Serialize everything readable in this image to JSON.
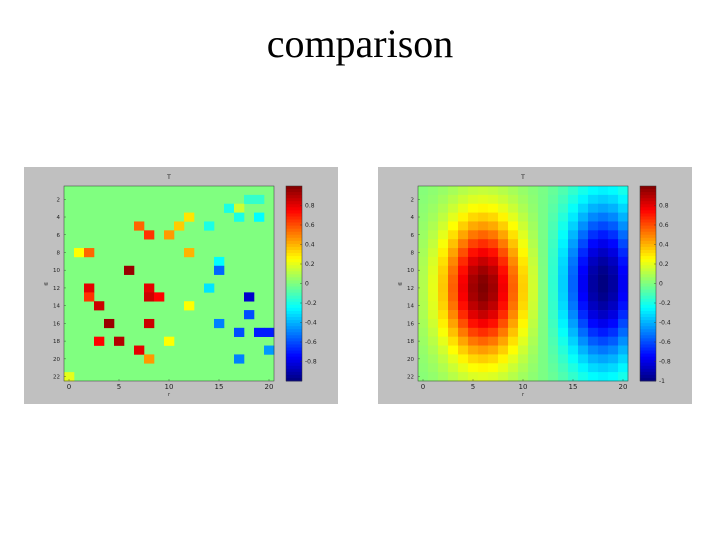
{
  "slide": {
    "title": "comparison"
  },
  "chart_data": [
    {
      "type": "heatmap",
      "title": "T",
      "xlabel": "r",
      "ylabel": "w",
      "x_range": [
        0,
        21
      ],
      "y_range": [
        0,
        22
      ],
      "x_ticks": [
        "0",
        "5",
        "10",
        "15",
        "20"
      ],
      "y_ticks": [
        "2",
        "4",
        "6",
        "8",
        "10",
        "12",
        "14",
        "16",
        "18",
        "20",
        "22"
      ],
      "x_tick_values": [
        0,
        5,
        10,
        15,
        20
      ],
      "y_tick_values": [
        2,
        4,
        6,
        8,
        10,
        12,
        14,
        16,
        18,
        20,
        22
      ],
      "background_value": 0,
      "colorbar_range": [
        -1,
        1
      ],
      "colorbar_ticks": [
        "0.8",
        "0.6",
        "0.4",
        "0.2",
        "0",
        "-0.2",
        "-0.4",
        "-0.6",
        "-0.8"
      ],
      "colorbar_tick_values": [
        0.8,
        0.6,
        0.4,
        0.2,
        0,
        -0.2,
        -0.4,
        -0.6,
        -0.8
      ],
      "cells": [
        {
          "col": 18,
          "row": 1,
          "value": -0.15
        },
        {
          "col": 19,
          "row": 1,
          "value": -0.15
        },
        {
          "col": 16,
          "row": 2,
          "value": -0.2
        },
        {
          "col": 17,
          "row": 2,
          "value": 0.15
        },
        {
          "col": 12,
          "row": 3,
          "value": 0.3
        },
        {
          "col": 19,
          "row": 3,
          "value": -0.25
        },
        {
          "col": 17,
          "row": 3,
          "value": -0.2
        },
        {
          "col": 7,
          "row": 4,
          "value": 0.55
        },
        {
          "col": 11,
          "row": 4,
          "value": 0.35
        },
        {
          "col": 14,
          "row": 4,
          "value": -0.2
        },
        {
          "col": 8,
          "row": 5,
          "value": 0.65
        },
        {
          "col": 10,
          "row": 5,
          "value": 0.45
        },
        {
          "col": 1,
          "row": 7,
          "value": 0.25
        },
        {
          "col": 2,
          "row": 7,
          "value": 0.55
        },
        {
          "col": 12,
          "row": 7,
          "value": 0.4
        },
        {
          "col": 15,
          "row": 8,
          "value": -0.25
        },
        {
          "col": 6,
          "row": 9,
          "value": 0.95
        },
        {
          "col": 15,
          "row": 9,
          "value": -0.55
        },
        {
          "col": 2,
          "row": 11,
          "value": 0.8
        },
        {
          "col": 8,
          "row": 11,
          "value": 0.8
        },
        {
          "col": 14,
          "row": 11,
          "value": -0.3
        },
        {
          "col": 2,
          "row": 12,
          "value": 0.65
        },
        {
          "col": 8,
          "row": 12,
          "value": 0.85
        },
        {
          "col": 9,
          "row": 12,
          "value": 0.75
        },
        {
          "col": 18,
          "row": 12,
          "value": -0.85
        },
        {
          "col": 3,
          "row": 13,
          "value": 0.85
        },
        {
          "col": 12,
          "row": 13,
          "value": 0.25
        },
        {
          "col": 18,
          "row": 14,
          "value": -0.6
        },
        {
          "col": 4,
          "row": 15,
          "value": 0.95
        },
        {
          "col": 8,
          "row": 15,
          "value": 0.85
        },
        {
          "col": 15,
          "row": 15,
          "value": -0.5
        },
        {
          "col": 19,
          "row": 16,
          "value": -0.7
        },
        {
          "col": 17,
          "row": 16,
          "value": -0.6
        },
        {
          "col": 20,
          "row": 16,
          "value": -0.7
        },
        {
          "col": 3,
          "row": 17,
          "value": 0.75
        },
        {
          "col": 5,
          "row": 17,
          "value": 0.9
        },
        {
          "col": 10,
          "row": 17,
          "value": 0.25
        },
        {
          "col": 7,
          "row": 18,
          "value": 0.8
        },
        {
          "col": 20,
          "row": 18,
          "value": -0.45
        },
        {
          "col": 8,
          "row": 19,
          "value": 0.45
        },
        {
          "col": 17,
          "row": 19,
          "value": -0.5
        },
        {
          "col": 0,
          "row": 21,
          "value": 0.2
        }
      ]
    },
    {
      "type": "heatmap",
      "title": "T",
      "xlabel": "r",
      "ylabel": "w",
      "x_range": [
        0,
        21
      ],
      "y_range": [
        0,
        22
      ],
      "x_ticks": [
        "0",
        "5",
        "10",
        "15",
        "20"
      ],
      "y_ticks": [
        "2",
        "4",
        "6",
        "8",
        "10",
        "12",
        "14",
        "16",
        "18",
        "20",
        "22"
      ],
      "x_tick_values": [
        0,
        5,
        10,
        15,
        20
      ],
      "y_tick_values": [
        2,
        4,
        6,
        8,
        10,
        12,
        14,
        16,
        18,
        20,
        22
      ],
      "field": {
        "cols": 21,
        "rows": 22,
        "components": [
          {
            "cx": 6,
            "cy": 11,
            "sx": 2.8,
            "sy": 5.5,
            "amp": 1.0
          },
          {
            "cx": 18,
            "cy": 10.5,
            "sx": 2.8,
            "sy": 6.5,
            "amp": -1.0
          }
        ],
        "range": [
          -1,
          1
        ]
      },
      "colorbar_range": [
        -1,
        1
      ],
      "colorbar_ticks": [
        "0.8",
        "0.6",
        "0.4",
        "0.2",
        "0",
        "-0.2",
        "-0.4",
        "-0.6",
        "-0.8",
        "-1"
      ],
      "colorbar_tick_values": [
        0.8,
        0.6,
        0.4,
        0.2,
        0,
        -0.2,
        -0.4,
        -0.6,
        -0.8,
        -1.0
      ]
    }
  ]
}
